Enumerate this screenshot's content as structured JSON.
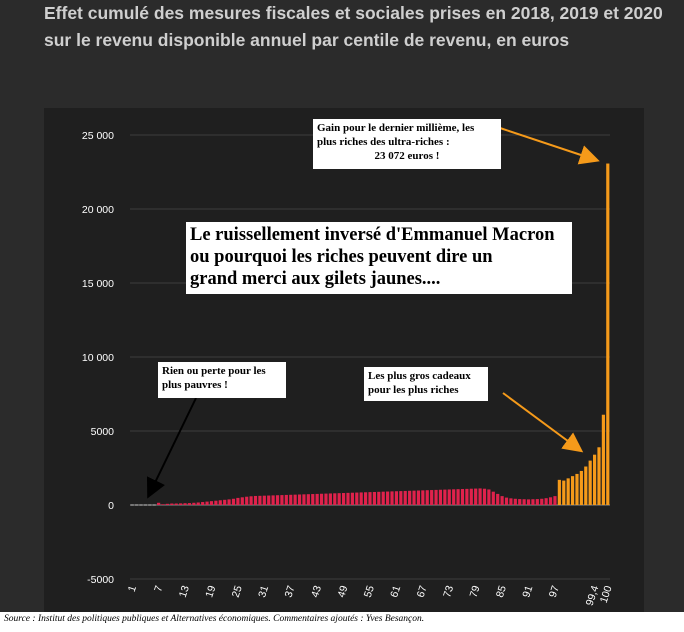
{
  "title": "Effet cumulé des mesures fiscales et sociales prises en 2018, 2019 et 2020 sur le revenu disponible annuel par centile de revenu, en euros",
  "source": "Source : Institut des politiques publiques et Alternatives économiques. Commentaires ajoutés : Yves Besançon.",
  "annotations": {
    "top_line1": "Gain pour le dernier millième, les",
    "top_line2": "plus riches des ultra-riches :",
    "top_line3": "23 072 euros !",
    "main_line1": "Le ruissellement inversé d'Emmanuel Macron",
    "main_line2": "ou pourquoi les riches peuvent dire un",
    "main_line3": "grand merci aux gilets jaunes....",
    "poor_line1": "Rien ou perte pour les",
    "poor_line2": "plus pauvres !",
    "rich_line1": "Les plus gros cadeaux",
    "rich_line2": "pour les plus riches"
  },
  "colors": {
    "background": "#2b2b2b",
    "plot_background": "#1f1f1f",
    "bar_red": "#e0224c",
    "bar_orange": "#f59a1a",
    "arrow_orange": "#f59a1a",
    "arrow_black": "#000000"
  },
  "chart_data": {
    "type": "bar",
    "title": "Effet cumulé des mesures fiscales et sociales prises en 2018, 2019 et 2020 sur le revenu disponible annuel par centile de revenu, en euros",
    "xlabel": "",
    "ylabel": "",
    "ylim": [
      -5000,
      25000
    ],
    "yticks": [
      25000,
      20000,
      15000,
      10000,
      5000,
      0,
      -5000
    ],
    "ytick_labels": [
      "25 000",
      "20 000",
      "15 000",
      "10 000",
      "5000",
      "0",
      "-5000"
    ],
    "xtick_labels": [
      "1",
      "7",
      "13",
      "19",
      "25",
      "31",
      "37",
      "43",
      "49",
      "55",
      "61",
      "67",
      "73",
      "79",
      "85",
      "91",
      "97",
      "99,4",
      "100"
    ],
    "grid": true,
    "red_values": [
      0,
      0,
      0,
      0,
      0,
      0,
      150,
      50,
      80,
      100,
      100,
      110,
      120,
      130,
      150,
      170,
      200,
      230,
      260,
      290,
      320,
      350,
      380,
      420,
      480,
      520,
      560,
      590,
      610,
      620,
      630,
      640,
      650,
      660,
      670,
      680,
      690,
      700,
      710,
      720,
      730,
      740,
      750,
      760,
      770,
      780,
      790,
      800,
      810,
      820,
      830,
      840,
      850,
      860,
      870,
      880,
      890,
      900,
      910,
      920,
      930,
      940,
      950,
      960,
      970,
      980,
      990,
      1000,
      1010,
      1020,
      1030,
      1040,
      1050,
      1060,
      1070,
      1080,
      1090,
      1100,
      1110,
      1120,
      1100,
      1050,
      900,
      750,
      600,
      500,
      450,
      420,
      400,
      390,
      380,
      390,
      400,
      420,
      460,
      520,
      600
    ],
    "orange_values": [
      1700,
      1650,
      1800,
      1950,
      2100,
      2300,
      2600,
      3000,
      3400,
      3900,
      6100,
      23072
    ]
  }
}
